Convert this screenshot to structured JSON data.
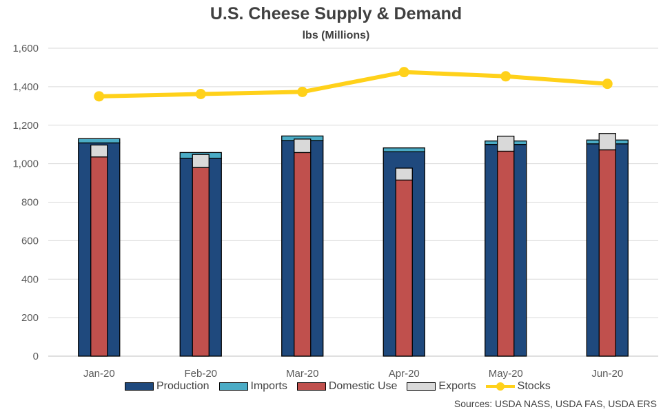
{
  "chart_data": {
    "type": "bar",
    "title": "U.S. Cheese Supply & Demand",
    "subtitle": "lbs (Millions)",
    "source": "Sources: USDA NASS, USDA FAS, USDA ERS",
    "categories": [
      "Jan-20",
      "Feb-20",
      "Mar-20",
      "Apr-20",
      "May-20",
      "Jun-20"
    ],
    "ylim": [
      0,
      1600
    ],
    "yticks": [
      0,
      200,
      400,
      600,
      800,
      1000,
      1200,
      1400,
      1600
    ],
    "ytick_labels": [
      "0",
      "200",
      "400",
      "600",
      "800",
      "1,000",
      "1,200",
      "1,400",
      "1,600"
    ],
    "grid": true,
    "legend_position": "bottom",
    "series": [
      {
        "name": "Production",
        "kind": "stacked-bar",
        "stack": "supply",
        "color": "#1F497D",
        "values": [
          1108,
          1028,
          1120,
          1062,
          1100,
          1103
        ]
      },
      {
        "name": "Imports",
        "kind": "stacked-bar",
        "stack": "supply",
        "color": "#4BACC6",
        "values": [
          22,
          30,
          24,
          20,
          18,
          20
        ]
      },
      {
        "name": "Domestic Use",
        "kind": "stacked-bar",
        "stack": "demand",
        "color": "#C0504D",
        "values": [
          1035,
          980,
          1058,
          915,
          1065,
          1072
        ]
      },
      {
        "name": "Exports",
        "kind": "stacked-bar",
        "stack": "demand",
        "color": "#D9D9D9",
        "values": [
          62,
          68,
          70,
          62,
          78,
          85
        ]
      },
      {
        "name": "Stocks",
        "kind": "line",
        "color": "#FFD11A",
        "values": [
          1350,
          1362,
          1373,
          1476,
          1454,
          1415
        ]
      }
    ]
  }
}
